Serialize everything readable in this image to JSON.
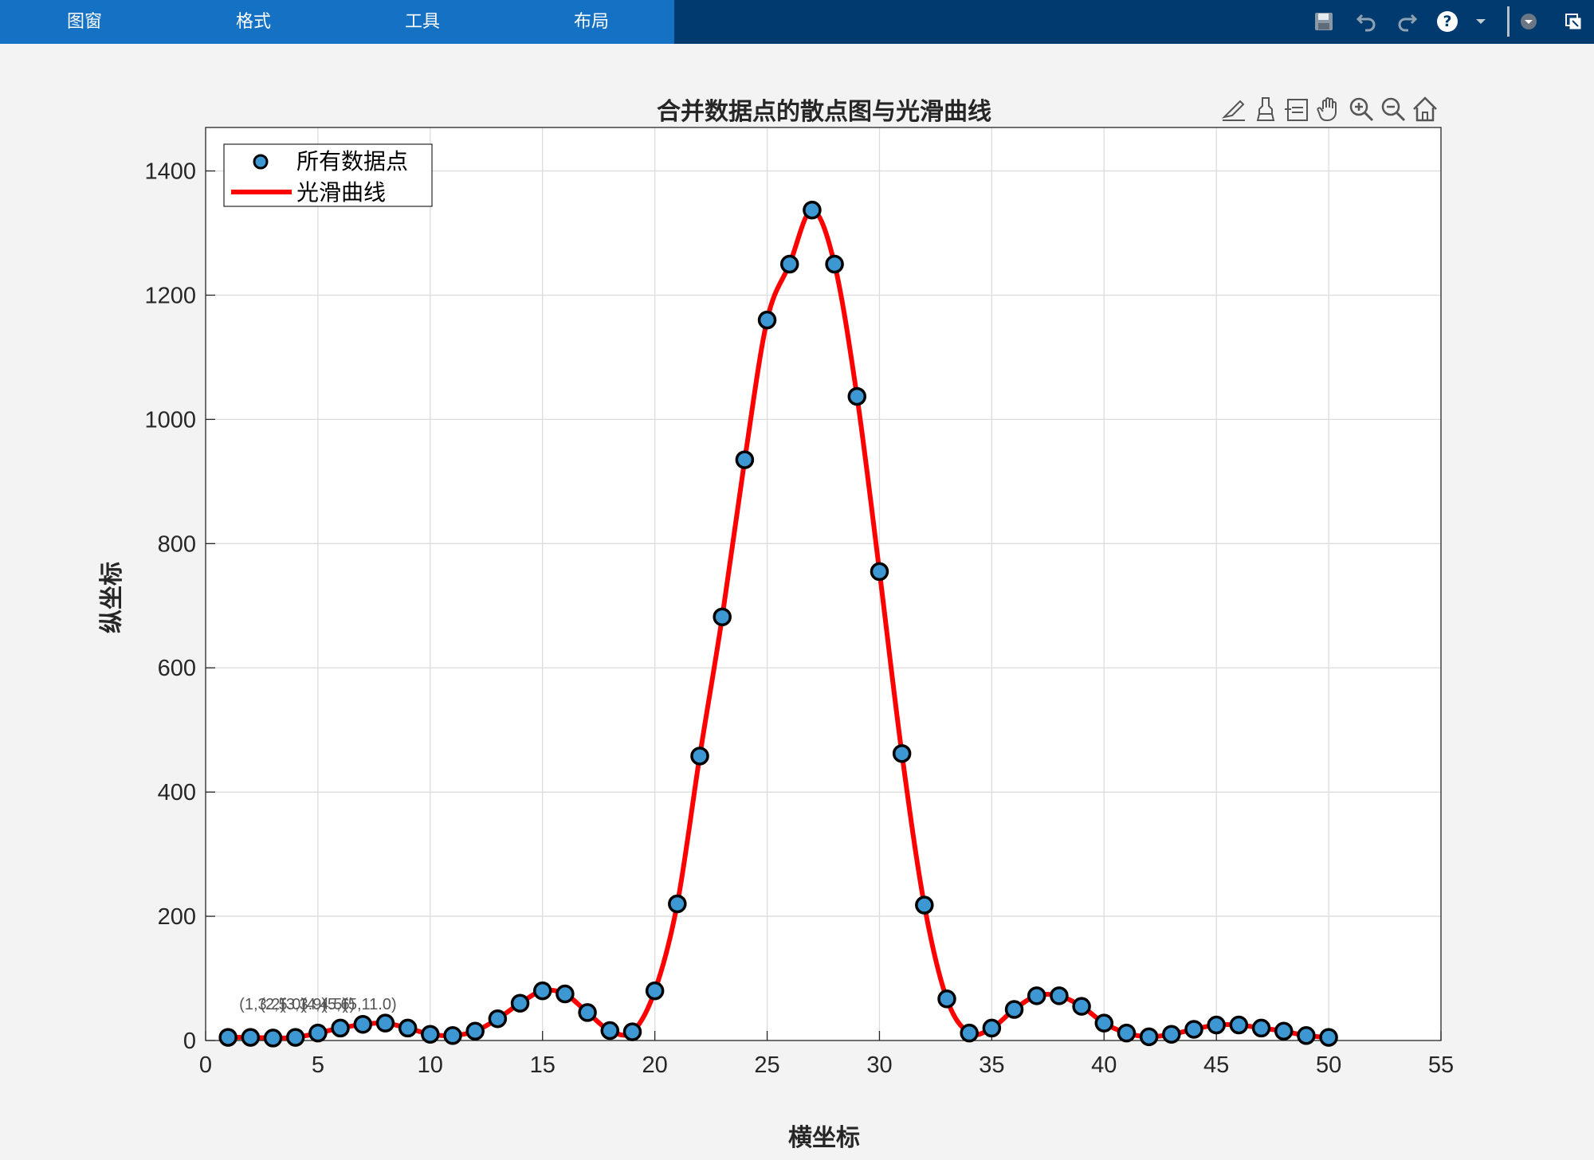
{
  "toolstrip": {
    "tabs": [
      "图窗",
      "格式",
      "工具",
      "布局"
    ],
    "quick_access": [
      "save-icon",
      "undo-icon",
      "redo-icon",
      "help-icon",
      "dropdown-icon",
      "options-icon",
      "undock-icon"
    ]
  },
  "axes_toolbar": [
    "edit-icon",
    "brush-icon",
    "data-tips-icon",
    "pan-icon",
    "zoom-in-icon",
    "zoom-out-icon",
    "home-icon"
  ],
  "colors": {
    "tab_bar": "#1471c4",
    "toolstrip": "#003a6e",
    "marker_fill": "#3d97d3",
    "curve": "#ff0000"
  },
  "chart_data": {
    "type": "scatter",
    "title": "合并数据点的散点图与光滑曲线",
    "xlabel": "横坐标",
    "ylabel": "纵坐标",
    "xlim": [
      0,
      55
    ],
    "ylim": [
      0,
      1470
    ],
    "xticks": [
      0,
      5,
      10,
      15,
      20,
      25,
      30,
      35,
      40,
      45,
      50,
      55
    ],
    "yticks": [
      0,
      200,
      400,
      600,
      800,
      1000,
      1200,
      1400
    ],
    "grid": true,
    "legend_position": "top-left",
    "series": [
      {
        "name": "所有数据点",
        "style": "markers",
        "x": [
          1,
          2,
          3,
          4,
          5,
          6,
          7,
          8,
          9,
          10,
          11,
          12,
          13,
          14,
          15,
          16,
          17,
          18,
          19,
          20,
          21,
          22,
          23,
          24,
          25,
          26,
          27,
          28,
          29,
          30,
          31,
          32,
          33,
          34,
          35,
          36,
          37,
          38,
          39,
          40,
          41,
          42,
          43,
          44,
          45,
          46,
          47,
          48,
          49,
          50
        ],
        "y": [
          5,
          5,
          4,
          5,
          12,
          20,
          26,
          28,
          20,
          10,
          8,
          15,
          35,
          60,
          80,
          75,
          45,
          16,
          14,
          80,
          220,
          458,
          682,
          935,
          1160,
          1250,
          1337,
          1250,
          1037,
          755,
          462,
          218,
          67,
          12,
          20,
          50,
          72,
          72,
          55,
          28,
          12,
          6,
          10,
          18,
          25,
          25,
          20,
          15,
          8,
          5
        ]
      },
      {
        "name": "光滑曲线",
        "style": "line",
        "x": [
          1,
          2,
          3,
          4,
          5,
          6,
          7,
          8,
          9,
          10,
          11,
          12,
          13,
          14,
          15,
          16,
          17,
          18,
          19,
          20,
          21,
          22,
          23,
          24,
          25,
          26,
          27,
          28,
          29,
          30,
          31,
          32,
          33,
          34,
          35,
          36,
          37,
          38,
          39,
          40,
          41,
          42,
          43,
          44,
          45,
          46,
          47,
          48,
          49,
          50
        ],
        "y": [
          5,
          5,
          4,
          5,
          12,
          20,
          26,
          28,
          20,
          10,
          8,
          15,
          35,
          60,
          80,
          75,
          45,
          16,
          14,
          80,
          220,
          458,
          682,
          935,
          1160,
          1250,
          1337,
          1250,
          1037,
          755,
          462,
          218,
          67,
          12,
          20,
          50,
          72,
          72,
          55,
          28,
          12,
          6,
          10,
          18,
          25,
          25,
          20,
          15,
          8,
          5
        ]
      }
    ],
    "annotations": [
      "(1,3.2)",
      "(2,5.0)",
      "(3,3.9)",
      "(4,4.5)",
      "(5,6)",
      "(5,11.0)"
    ]
  }
}
